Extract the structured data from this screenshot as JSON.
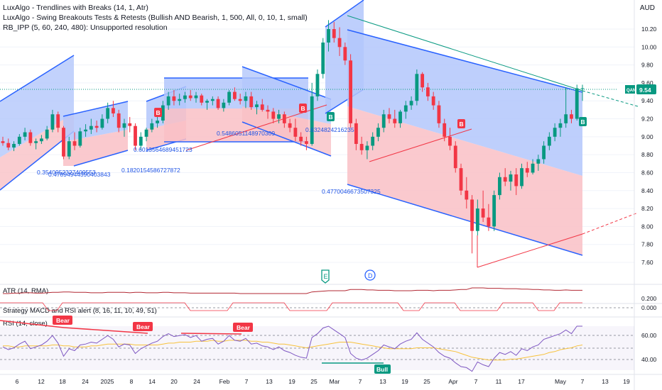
{
  "legend": {
    "line1": "LuxAlgo - Trendlines with Breaks (14, 1, Atr)",
    "line2": "LuxAlgo - Swing Breakouts Tests & Retests (Bullish AND Bearish, 1, 500, All, 0, 10, 1, small)",
    "line3": "RB_IPP (5, 60, 240, 480): Unsupported resolution"
  },
  "currency": "AUD",
  "price_axis": {
    "ticks": [
      "10.20",
      "10.00",
      "9.80",
      "9.60",
      "9.40",
      "9.20",
      "9.00",
      "8.80",
      "8.60",
      "8.40",
      "8.20",
      "8.00",
      "7.80",
      "7.60"
    ],
    "symbol": "QAN",
    "last_price": "9.54"
  },
  "atr_pane": {
    "title": "ATR (14, RMA)",
    "ticks": [
      "0.200",
      "0.000"
    ]
  },
  "macd_pane": {
    "title": "Strategy MACD and RSI alert (8, 16, 11, 10, 49, 51)"
  },
  "rsi_pane": {
    "title": "RSI (14, close)",
    "ticks": [
      "60.00",
      "40.00"
    ]
  },
  "time_axis": [
    "6",
    "12",
    "18",
    "24",
    "2025",
    "8",
    "14",
    "20",
    "24",
    "Feb",
    "7",
    "13",
    "19",
    "25",
    "Mar",
    "7",
    "13",
    "19",
    "25",
    "Apr",
    "7",
    "11",
    "17",
    "May",
    "7",
    "13",
    "19"
  ],
  "fib_labels": [
    "0.5486051148970309",
    "0.6324824216235",
    "0.4770046673507325",
    "0.6013564689451723",
    "0.1820154586727872",
    "0.3540952327409553",
    "0.47894944390403843"
  ],
  "markers": {
    "breakout_b": "B",
    "earnings": "E",
    "dividend": "D",
    "bear": "Bear",
    "bull": "Bull"
  },
  "colors": {
    "up": "#089981",
    "down": "#f23645",
    "channel_blue": "#2962ff",
    "fill_blue": "#b3c7fb",
    "fill_red": "#f9c0c5",
    "rsi_line": "#7e57c2",
    "rsi_ma": "#f7c23c"
  },
  "chart_data": [
    {
      "type": "candlestick",
      "title": "QAN",
      "ylim": [
        7.5,
        10.35
      ],
      "x": [
        "Dec 3",
        "Dec 4",
        "Dec 5",
        "Dec 6",
        "Dec 9",
        "Dec 10",
        "Dec 11",
        "Dec 12",
        "Dec 13",
        "Dec 16",
        "Dec 17",
        "Dec 18",
        "Dec 19",
        "Dec 20",
        "Dec 23",
        "Dec 24",
        "Dec 27",
        "Dec 30",
        "Dec 31",
        "Jan 2",
        "Jan 3",
        "Jan 6",
        "Jan 7",
        "Jan 8",
        "Jan 9",
        "Jan 10",
        "Jan 13",
        "Jan 14",
        "Jan 15",
        "Jan 16",
        "Jan 17",
        "Jan 20",
        "Jan 21",
        "Jan 22",
        "Jan 23",
        "Jan 24",
        "Jan 27",
        "Jan 28",
        "Jan 29",
        "Jan 30",
        "Jan 31",
        "Feb 3",
        "Feb 4",
        "Feb 5",
        "Feb 6",
        "Feb 7",
        "Feb 10",
        "Feb 11",
        "Feb 12",
        "Feb 13",
        "Feb 14",
        "Feb 17",
        "Feb 18",
        "Feb 19",
        "Feb 20",
        "Feb 21",
        "Feb 24",
        "Feb 25",
        "Feb 26",
        "Feb 27",
        "Feb 28",
        "Mar 3",
        "Mar 4",
        "Mar 5",
        "Mar 6",
        "Mar 7",
        "Mar 10",
        "Mar 11",
        "Mar 12",
        "Mar 13",
        "Mar 14",
        "Mar 17",
        "Mar 18",
        "Mar 19",
        "Mar 20",
        "Mar 21",
        "Mar 24",
        "Mar 25",
        "Mar 26",
        "Mar 27",
        "Mar 28",
        "Mar 31",
        "Apr 1",
        "Apr 2",
        "Apr 3",
        "Apr 4",
        "Apr 7",
        "Apr 8",
        "Apr 9",
        "Apr 10",
        "Apr 11",
        "Apr 14",
        "Apr 15",
        "Apr 16",
        "Apr 17",
        "Apr 22",
        "Apr 23",
        "Apr 24",
        "Apr 28",
        "Apr 29",
        "Apr 30",
        "May 1",
        "May 2",
        "May 5",
        "May 6",
        "May 7"
      ],
      "ohlc": [
        [
          8.95,
          9.0,
          8.9,
          8.93
        ],
        [
          8.93,
          8.98,
          8.85,
          8.88
        ],
        [
          8.88,
          8.95,
          8.84,
          8.92
        ],
        [
          8.92,
          9.03,
          8.9,
          9.0
        ],
        [
          9.0,
          9.1,
          8.96,
          9.05
        ],
        [
          9.05,
          9.08,
          8.9,
          8.93
        ],
        [
          8.93,
          8.98,
          8.86,
          8.95
        ],
        [
          8.95,
          9.02,
          8.92,
          8.98
        ],
        [
          8.98,
          9.12,
          8.96,
          9.08
        ],
        [
          9.08,
          9.3,
          9.05,
          9.25
        ],
        [
          9.25,
          9.28,
          9.05,
          9.1
        ],
        [
          9.1,
          9.12,
          8.75,
          8.78
        ],
        [
          8.78,
          9.0,
          8.75,
          8.95
        ],
        [
          8.95,
          9.05,
          8.85,
          8.9
        ],
        [
          8.9,
          9.1,
          8.88,
          9.06
        ],
        [
          9.06,
          9.14,
          9.0,
          9.08
        ],
        [
          9.08,
          9.2,
          9.03,
          9.12
        ],
        [
          9.12,
          9.18,
          9.05,
          9.1
        ],
        [
          9.1,
          9.25,
          9.08,
          9.2
        ],
        [
          9.2,
          9.38,
          9.15,
          9.32
        ],
        [
          9.32,
          9.4,
          9.22,
          9.26
        ],
        [
          9.26,
          9.3,
          9.05,
          9.1
        ],
        [
          9.1,
          9.2,
          9.0,
          9.15
        ],
        [
          9.15,
          9.22,
          9.05,
          9.12
        ],
        [
          9.12,
          9.15,
          8.85,
          8.9
        ],
        [
          8.9,
          9.05,
          8.85,
          9.0
        ],
        [
          9.0,
          9.1,
          8.95,
          9.08
        ],
        [
          9.08,
          9.2,
          9.05,
          9.15
        ],
        [
          9.15,
          9.22,
          9.1,
          9.18
        ],
        [
          9.18,
          9.4,
          9.15,
          9.35
        ],
        [
          9.35,
          9.5,
          9.3,
          9.45
        ],
        [
          9.45,
          9.52,
          9.35,
          9.4
        ],
        [
          9.4,
          9.48,
          9.35,
          9.42
        ],
        [
          9.42,
          9.5,
          9.38,
          9.46
        ],
        [
          9.46,
          9.52,
          9.4,
          9.43
        ],
        [
          9.43,
          9.5,
          9.38,
          9.46
        ],
        [
          9.46,
          9.48,
          9.35,
          9.38
        ],
        [
          9.38,
          9.42,
          9.3,
          9.4
        ],
        [
          9.4,
          9.45,
          9.35,
          9.42
        ],
        [
          9.42,
          9.45,
          9.3,
          9.32
        ],
        [
          9.32,
          9.42,
          9.28,
          9.38
        ],
        [
          9.38,
          9.52,
          9.35,
          9.5
        ],
        [
          9.5,
          9.55,
          9.4,
          9.42
        ],
        [
          9.42,
          9.48,
          9.36,
          9.4
        ],
        [
          9.4,
          9.5,
          9.32,
          9.45
        ],
        [
          9.45,
          9.5,
          9.3,
          9.33
        ],
        [
          9.33,
          9.4,
          9.25,
          9.36
        ],
        [
          9.36,
          9.42,
          9.28,
          9.3
        ],
        [
          9.3,
          9.35,
          9.2,
          9.28
        ],
        [
          9.28,
          9.32,
          9.15,
          9.2
        ],
        [
          9.2,
          9.3,
          9.15,
          9.25
        ],
        [
          9.25,
          9.28,
          9.1,
          9.15
        ],
        [
          9.15,
          9.2,
          9.05,
          9.1
        ],
        [
          9.1,
          9.2,
          8.95,
          9.0
        ],
        [
          9.0,
          9.05,
          8.9,
          8.95
        ],
        [
          8.95,
          9.0,
          8.85,
          8.92
        ],
        [
          8.92,
          9.6,
          8.9,
          9.45
        ],
        [
          9.45,
          9.75,
          9.4,
          9.7
        ],
        [
          9.7,
          10.1,
          9.65,
          10.05
        ],
        [
          10.05,
          10.3,
          9.95,
          10.2
        ],
        [
          10.2,
          10.28,
          10.05,
          10.1
        ],
        [
          10.1,
          10.22,
          9.9,
          10.0
        ],
        [
          10.0,
          10.05,
          9.8,
          9.85
        ],
        [
          9.85,
          9.92,
          9.1,
          9.15
        ],
        [
          9.15,
          9.2,
          8.85,
          8.92
        ],
        [
          8.92,
          9.0,
          8.8,
          8.85
        ],
        [
          8.85,
          8.95,
          8.75,
          8.9
        ],
        [
          8.9,
          9.05,
          8.85,
          9.0
        ],
        [
          9.0,
          9.15,
          8.95,
          9.1
        ],
        [
          9.1,
          9.3,
          9.05,
          9.25
        ],
        [
          9.25,
          9.32,
          9.15,
          9.2
        ],
        [
          9.2,
          9.3,
          9.1,
          9.15
        ],
        [
          9.15,
          9.3,
          9.1,
          9.28
        ],
        [
          9.28,
          9.4,
          9.2,
          9.35
        ],
        [
          9.35,
          9.45,
          9.3,
          9.4
        ],
        [
          9.4,
          9.75,
          9.35,
          9.7
        ],
        [
          9.7,
          9.72,
          9.5,
          9.55
        ],
        [
          9.55,
          9.6,
          9.4,
          9.45
        ],
        [
          9.45,
          9.5,
          9.3,
          9.35
        ],
        [
          9.35,
          9.4,
          9.1,
          9.15
        ],
        [
          9.15,
          9.2,
          8.95,
          9.0
        ],
        [
          9.0,
          9.1,
          8.85,
          8.9
        ],
        [
          8.9,
          8.95,
          8.6,
          8.65
        ],
        [
          8.65,
          8.7,
          8.35,
          8.4
        ],
        [
          8.4,
          8.55,
          8.2,
          8.3
        ],
        [
          8.3,
          8.35,
          7.7,
          7.95
        ],
        [
          7.95,
          8.3,
          7.9,
          8.2
        ],
        [
          8.2,
          8.4,
          8.05,
          8.1
        ],
        [
          8.1,
          8.25,
          7.95,
          8.0
        ],
        [
          8.0,
          8.4,
          7.95,
          8.35
        ],
        [
          8.35,
          8.6,
          8.3,
          8.55
        ],
        [
          8.55,
          8.65,
          8.45,
          8.5
        ],
        [
          8.5,
          8.62,
          8.4,
          8.58
        ],
        [
          8.58,
          8.65,
          8.35,
          8.45
        ],
        [
          8.45,
          8.7,
          8.42,
          8.65
        ],
        [
          8.65,
          8.72,
          8.55,
          8.6
        ],
        [
          8.6,
          8.75,
          8.58,
          8.7
        ],
        [
          8.7,
          8.8,
          8.62,
          8.75
        ],
        [
          8.75,
          8.95,
          8.7,
          8.9
        ],
        [
          8.9,
          9.05,
          8.85,
          9.0
        ],
        [
          9.0,
          9.15,
          8.95,
          9.1
        ],
        [
          9.1,
          9.2,
          9.0,
          9.15
        ],
        [
          9.15,
          9.55,
          9.1,
          9.25
        ],
        [
          9.25,
          9.3,
          9.15,
          9.2
        ],
        [
          9.2,
          9.58,
          9.18,
          9.54
        ],
        [
          9.54,
          9.58,
          9.4,
          9.54
        ]
      ]
    },
    {
      "type": "line",
      "title": "ATR (14, RMA)",
      "ylim": [
        0,
        0.35
      ],
      "series": [
        {
          "values": [
            0.14,
            0.14,
            0.15,
            0.15,
            0.16,
            0.16,
            0.15,
            0.15,
            0.16,
            0.17,
            0.17,
            0.18,
            0.18,
            0.17,
            0.17,
            0.17,
            0.16,
            0.16,
            0.16,
            0.17,
            0.17,
            0.17,
            0.17,
            0.16,
            0.17,
            0.17,
            0.16,
            0.16,
            0.16,
            0.17,
            0.17,
            0.16,
            0.16,
            0.16,
            0.15,
            0.15,
            0.15,
            0.15,
            0.15,
            0.15,
            0.15,
            0.15,
            0.15,
            0.14,
            0.14,
            0.14,
            0.14,
            0.14,
            0.14,
            0.14,
            0.14,
            0.14,
            0.14,
            0.14,
            0.14,
            0.14,
            0.18,
            0.19,
            0.2,
            0.21,
            0.21,
            0.21,
            0.21,
            0.24,
            0.24,
            0.24,
            0.23,
            0.23,
            0.22,
            0.22,
            0.22,
            0.21,
            0.21,
            0.21,
            0.21,
            0.22,
            0.22,
            0.22,
            0.21,
            0.22,
            0.22,
            0.22,
            0.23,
            0.24,
            0.24,
            0.28,
            0.28,
            0.28,
            0.27,
            0.27,
            0.27,
            0.26,
            0.26,
            0.26,
            0.25,
            0.25,
            0.24,
            0.24,
            0.23,
            0.23,
            0.22,
            0.22,
            0.23,
            0.22,
            0.22,
            0.22
          ]
        }
      ]
    },
    {
      "type": "line",
      "title": "RSI (14, close)",
      "ylim": [
        25,
        80
      ],
      "series": [
        {
          "values": [
            52,
            49,
            51,
            55,
            58,
            50,
            52,
            54,
            58,
            64,
            56,
            42,
            50,
            48,
            54,
            55,
            57,
            56,
            60,
            64,
            60,
            52,
            55,
            54,
            45,
            50,
            53,
            56,
            58,
            63,
            66,
            63,
            64,
            65,
            62,
            64,
            58,
            60,
            61,
            55,
            58,
            64,
            59,
            58,
            61,
            55,
            56,
            53,
            52,
            49,
            52,
            48,
            46,
            43,
            41,
            40,
            62,
            66,
            72,
            74,
            70,
            66,
            62,
            45,
            40,
            38,
            40,
            44,
            48,
            54,
            52,
            50,
            55,
            58,
            60,
            67,
            60,
            56,
            52,
            46,
            42,
            40,
            35,
            31,
            30,
            26,
            36,
            33,
            31,
            40,
            46,
            44,
            47,
            43,
            50,
            48,
            52,
            54,
            60,
            62,
            64,
            66,
            70,
            66,
            74,
            74
          ]
        },
        {
          "values": [
            53,
            53,
            52,
            52,
            53,
            53,
            53,
            53,
            53,
            54,
            54,
            53,
            53,
            52,
            52,
            52,
            53,
            53,
            54,
            55,
            55,
            55,
            55,
            55,
            54,
            54,
            54,
            54,
            54,
            55,
            56,
            56,
            57,
            57,
            57,
            58,
            58,
            58,
            59,
            58,
            58,
            59,
            59,
            59,
            59,
            58,
            58,
            57,
            57,
            56,
            55,
            55,
            54,
            53,
            52,
            51,
            52,
            53,
            54,
            55,
            56,
            57,
            57,
            57,
            56,
            55,
            54,
            53,
            52,
            51,
            50,
            50,
            50,
            50,
            50,
            51,
            51,
            51,
            51,
            50,
            49,
            48,
            47,
            45,
            43,
            41,
            40,
            39,
            38,
            38,
            38,
            38,
            39,
            39,
            40,
            41,
            42,
            43,
            44,
            46,
            47,
            49,
            50,
            51,
            53,
            54
          ]
        }
      ]
    }
  ]
}
